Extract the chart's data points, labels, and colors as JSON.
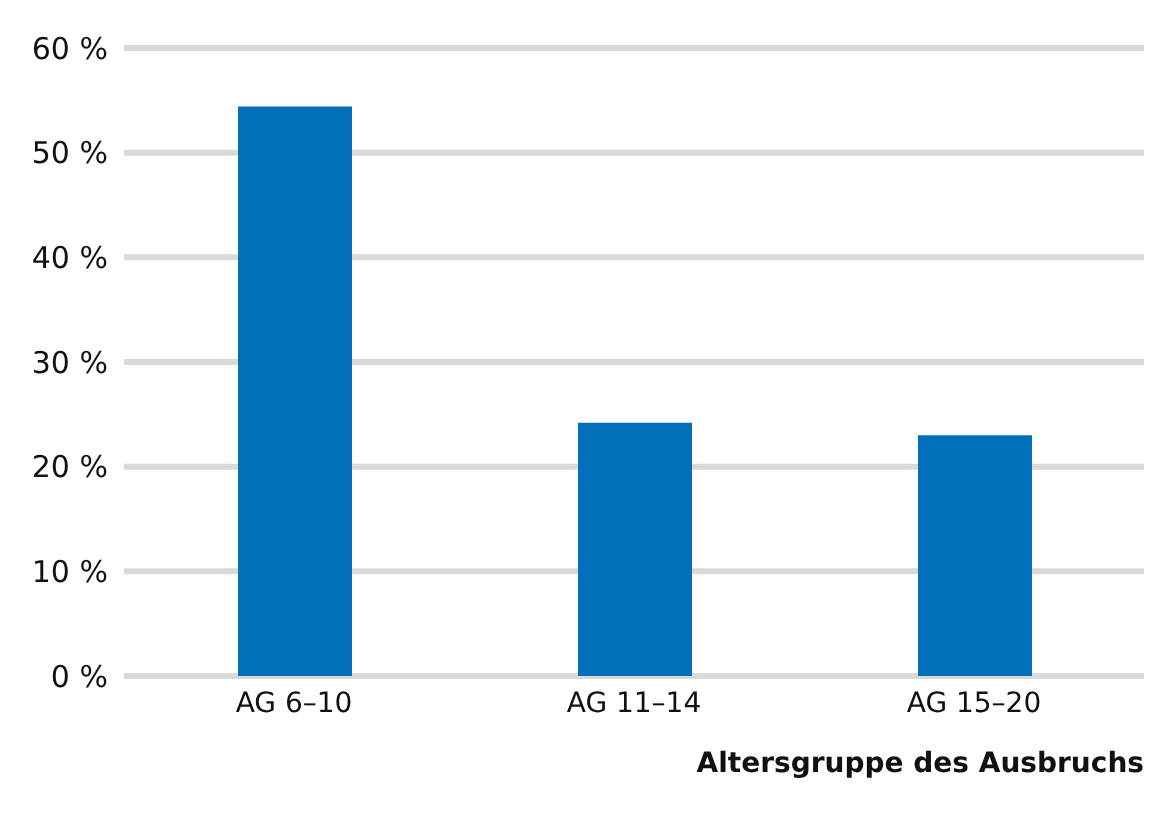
{
  "chart_data": {
    "type": "bar",
    "xlabel": "Altersgruppe des Ausbruchs",
    "categories": [
      "AG 6–10",
      "AG 11–14",
      "AG 15–20"
    ],
    "values": [
      54.4,
      24.2,
      23.0
    ],
    "color": "#0070ba",
    "ylim": [
      0,
      60
    ],
    "yticks": [
      {
        "value": 0,
        "label": "0 %"
      },
      {
        "value": 10,
        "label": "10 %"
      },
      {
        "value": 20,
        "label": "20 %"
      },
      {
        "value": 30,
        "label": "30 %"
      },
      {
        "value": 40,
        "label": "40 %"
      },
      {
        "value": 50,
        "label": "50 %"
      },
      {
        "value": 60,
        "label": "60 %"
      }
    ],
    "grid": "y"
  }
}
